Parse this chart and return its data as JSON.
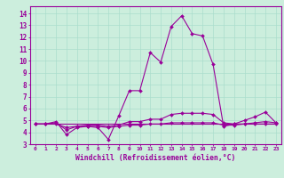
{
  "xlabel": "Windchill (Refroidissement éolien,°C)",
  "background_color": "#cceedd",
  "grid_color": "#aaddcc",
  "line_color": "#990099",
  "xlim": [
    -0.5,
    23.5
  ],
  "ylim": [
    3,
    14.6
  ],
  "yticks": [
    3,
    4,
    5,
    6,
    7,
    8,
    9,
    10,
    11,
    12,
    13,
    14
  ],
  "xticks": [
    0,
    1,
    2,
    3,
    4,
    5,
    6,
    7,
    8,
    9,
    10,
    11,
    12,
    13,
    14,
    15,
    16,
    17,
    18,
    19,
    20,
    21,
    22,
    23
  ],
  "series": [
    {
      "x": [
        0,
        1,
        2,
        3,
        4,
        5,
        6,
        7,
        8,
        9,
        10,
        11,
        12,
        13,
        14,
        15,
        16,
        17,
        18,
        19,
        20,
        21,
        22,
        23
      ],
      "y": [
        4.7,
        4.7,
        4.9,
        3.8,
        4.4,
        4.5,
        4.4,
        3.4,
        5.4,
        7.5,
        7.5,
        10.7,
        9.9,
        12.9,
        13.8,
        12.3,
        12.1,
        9.7,
        4.5,
        4.7,
        5.0,
        5.3,
        5.7,
        4.8
      ],
      "marker": true
    },
    {
      "x": [
        0,
        1,
        2,
        3,
        4,
        5,
        6,
        7,
        8,
        9,
        10,
        11,
        12,
        13,
        14,
        15,
        16,
        17,
        18,
        19,
        20,
        21,
        22,
        23
      ],
      "y": [
        4.7,
        4.7,
        4.7,
        4.7,
        4.7,
        4.7,
        4.7,
        4.7,
        4.7,
        4.7,
        4.7,
        4.7,
        4.7,
        4.7,
        4.7,
        4.7,
        4.7,
        4.7,
        4.7,
        4.7,
        4.7,
        4.7,
        4.7,
        4.7
      ],
      "marker": false
    },
    {
      "x": [
        0,
        1,
        2,
        3,
        4,
        5,
        6,
        7,
        8,
        9,
        10,
        11,
        12,
        13,
        14,
        15,
        16,
        17,
        18,
        19,
        20,
        21,
        22,
        23
      ],
      "y": [
        4.7,
        4.7,
        4.8,
        4.2,
        4.5,
        4.6,
        4.6,
        4.5,
        4.6,
        4.9,
        4.9,
        5.1,
        5.1,
        5.5,
        5.6,
        5.6,
        5.6,
        5.5,
        4.8,
        4.7,
        4.7,
        4.8,
        4.9,
        4.8
      ],
      "marker": true
    },
    {
      "x": [
        0,
        1,
        2,
        3,
        4,
        5,
        6,
        7,
        8,
        9,
        10,
        11,
        12,
        13,
        14,
        15,
        16,
        17,
        18,
        19,
        20,
        21,
        22,
        23
      ],
      "y": [
        4.7,
        4.7,
        4.7,
        4.4,
        4.5,
        4.5,
        4.5,
        4.4,
        4.5,
        4.6,
        4.6,
        4.7,
        4.7,
        4.8,
        4.8,
        4.8,
        4.8,
        4.8,
        4.6,
        4.6,
        4.7,
        4.7,
        4.7,
        4.7
      ],
      "marker": true
    }
  ]
}
